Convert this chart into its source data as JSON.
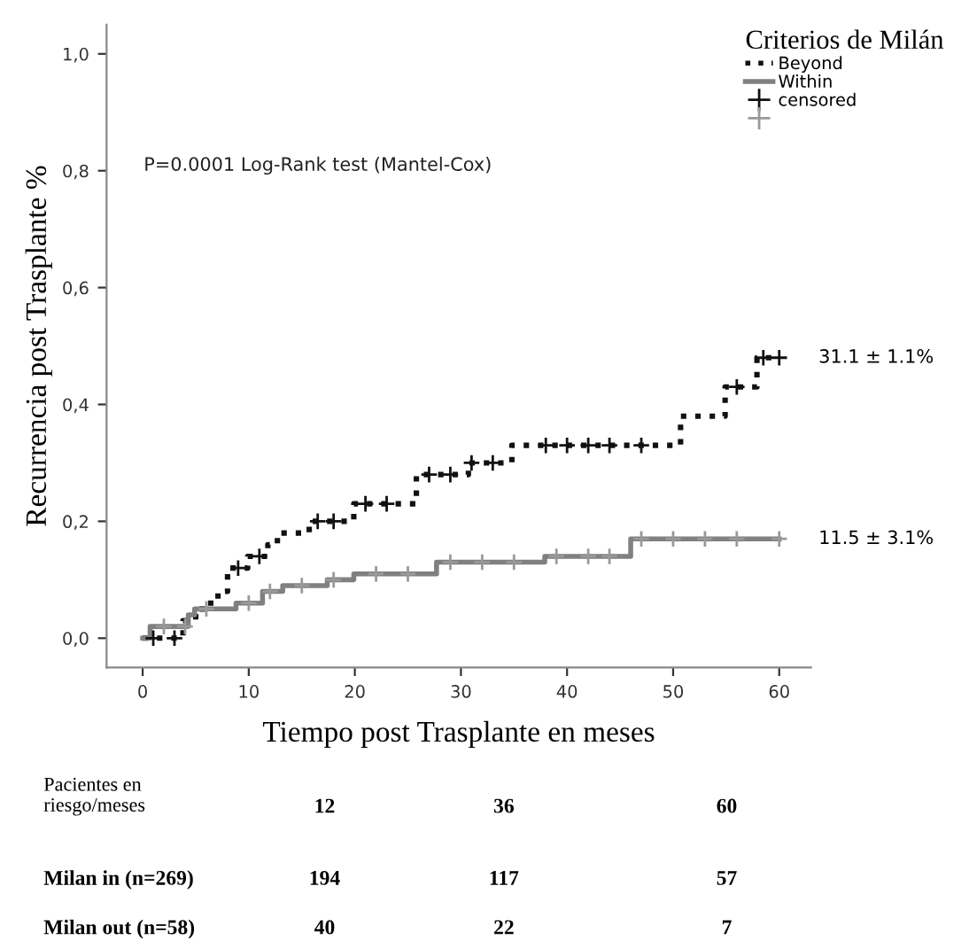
{
  "chart_data": {
    "type": "step",
    "ylabel": "Recurrencia post Trasplante %",
    "xlabel": "Tiempo post Trasplante en meses",
    "legend_title": "Criterios de Milán",
    "legend": "top right",
    "grid": false,
    "xlim": [
      -3.4,
      63
    ],
    "xticks": [
      0,
      10,
      20,
      30,
      40,
      50,
      60
    ],
    "ylim": [
      -0.05,
      1.05
    ],
    "yticks": [
      {
        "value": 0,
        "label": "0,0"
      },
      {
        "value": 0.2,
        "label": "0,2"
      },
      {
        "value": 0.4,
        "label": "0,4"
      },
      {
        "value": 0.6,
        "label": "0,6"
      },
      {
        "value": 0.8,
        "label": "0,8"
      },
      {
        "value": 1.0,
        "label": "1,0"
      }
    ],
    "series": [
      {
        "name": "Beyond",
        "color": "#111111",
        "line_style": "dotted",
        "marker": "none",
        "x": [
          0,
          3.8,
          5,
          6,
          7.1,
          8,
          9.9,
          11.8,
          12.7,
          15.7,
          19.9,
          25.8,
          30.7,
          34.8,
          50.7,
          54.9,
          57.9,
          60
        ],
        "values": [
          0,
          0.03,
          0.05,
          0.06,
          0.08,
          0.12,
          0.14,
          0.16,
          0.18,
          0.2,
          0.23,
          0.28,
          0.3,
          0.33,
          0.38,
          0.43,
          0.48,
          0.48
        ]
      },
      {
        "name": "Within",
        "color": "#808080",
        "line_style": "solid",
        "marker": "none",
        "x": [
          0,
          0.7,
          4.3,
          4.9,
          8.8,
          11.3,
          13.2,
          17.4,
          19.9,
          27.7,
          37.9,
          46,
          60
        ],
        "values": [
          0,
          0.02,
          0.04,
          0.05,
          0.06,
          0.08,
          0.09,
          0.1,
          0.11,
          0.13,
          0.14,
          0.17,
          0.17
        ]
      },
      {
        "type": "scatter",
        "name": "censored",
        "color": "#111111",
        "marker": "cross",
        "x": [
          1,
          3,
          9,
          11,
          16.5,
          18,
          21,
          23,
          27,
          29,
          31,
          33,
          38,
          40,
          42,
          44,
          47,
          56,
          58.5,
          60
        ],
        "values": [
          0,
          0,
          0.12,
          0.14,
          0.2,
          0.2,
          0.23,
          0.23,
          0.28,
          0.28,
          0.3,
          0.3,
          0.33,
          0.33,
          0.33,
          0.33,
          0.33,
          0.43,
          0.48,
          0.48
        ]
      },
      {
        "type": "scatter",
        "color": "#999999",
        "marker": "cross",
        "x": [
          2,
          4,
          6,
          10,
          12,
          15,
          18,
          22,
          25,
          29,
          32,
          35,
          39,
          42,
          44,
          47,
          50,
          53,
          56,
          60
        ],
        "values": [
          0.02,
          0.02,
          0.05,
          0.06,
          0.08,
          0.09,
          0.1,
          0.11,
          0.11,
          0.13,
          0.13,
          0.13,
          0.14,
          0.14,
          0.14,
          0.17,
          0.17,
          0.17,
          0.17,
          0.17
        ]
      }
    ],
    "annotations": [
      "P=0.0001 Log-Rank test (Mantel-Cox)",
      "31.1 ± 1.1%",
      "11.5 ± 3.1%",
      "Pacientes en\nriesgo/meses",
      "12",
      "36",
      "60",
      "Milan in (n=269)",
      "194",
      "117",
      "57",
      "Milan out (n=58)",
      "40",
      "22",
      "7"
    ]
  }
}
